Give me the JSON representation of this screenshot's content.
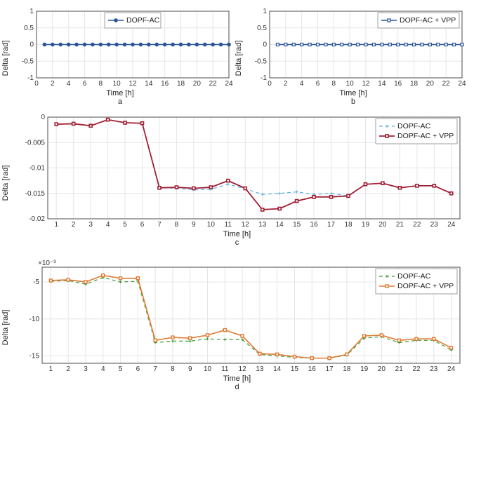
{
  "common": {
    "xlabel": "Time [h]",
    "ylabel": "Delta [rad]",
    "grid_color": "#e6e6e6",
    "axis_color": "#4d4d4d",
    "background_color": "#ffffff",
    "tick_fontsize": 10,
    "label_fontsize": 11
  },
  "panel_a": {
    "sub": "a",
    "type": "line",
    "xlim": [
      0,
      24
    ],
    "xtick_step": 2,
    "ylim": [
      -1,
      1
    ],
    "ytick_step": 0.5,
    "series": [
      {
        "name": "DOPF-AC",
        "color": "#2b5797",
        "marker": "circle",
        "marker_size": 4.5,
        "linewidth": 1.4,
        "dash": "none",
        "x": [
          1,
          2,
          3,
          4,
          5,
          6,
          7,
          8,
          9,
          10,
          11,
          12,
          13,
          14,
          15,
          16,
          17,
          18,
          19,
          20,
          21,
          22,
          23,
          24
        ],
        "y": [
          0,
          0,
          0,
          0,
          0,
          0,
          0,
          0,
          0,
          0,
          0,
          0,
          0,
          0,
          0,
          0,
          0,
          0,
          0,
          0,
          0,
          0,
          0,
          0
        ]
      }
    ],
    "legend": {
      "pos": "top-center",
      "items": [
        "DOPF-AC"
      ]
    }
  },
  "panel_b": {
    "sub": "b",
    "type": "line",
    "xlim": [
      0,
      24
    ],
    "xtick_step": 2,
    "ylim": [
      -1,
      1
    ],
    "ytick_step": 0.5,
    "series": [
      {
        "name": "DOPF-AC + VPP",
        "color": "#2b5797",
        "marker": "square",
        "marker_size": 4,
        "linewidth": 1.4,
        "dash": "none",
        "x": [
          1,
          2,
          3,
          4,
          5,
          6,
          7,
          8,
          9,
          10,
          11,
          12,
          13,
          14,
          15,
          16,
          17,
          18,
          19,
          20,
          21,
          22,
          23,
          24
        ],
        "y": [
          0,
          0,
          0,
          0,
          0,
          0,
          0,
          0,
          0,
          0,
          0,
          0,
          0,
          0,
          0,
          0,
          0,
          0,
          0,
          0,
          0,
          0,
          0,
          0
        ]
      }
    ],
    "legend": {
      "pos": "top-right",
      "items": [
        "DOPF-AC + VPP"
      ]
    }
  },
  "panel_c": {
    "sub": "c",
    "type": "line",
    "xlim": [
      0.5,
      24.5
    ],
    "xtick_step": 1,
    "ylim": [
      -0.02,
      0
    ],
    "ytick_step": 0.005,
    "series": [
      {
        "name": "DOPF-AC",
        "color": "#5ab3e6",
        "marker": "plus",
        "marker_size": 4,
        "linewidth": 1.2,
        "dash": "dash",
        "x": [
          1,
          2,
          3,
          4,
          5,
          6,
          7,
          8,
          9,
          10,
          11,
          12,
          13,
          14,
          15,
          16,
          17,
          18,
          19,
          20,
          21,
          22,
          23,
          24
        ],
        "y": [
          -0.0014,
          -0.0013,
          -0.0017,
          -0.0005,
          -0.0011,
          -0.0012,
          -0.0139,
          -0.014,
          -0.0143,
          -0.0142,
          -0.0132,
          -0.0141,
          -0.0152,
          -0.015,
          -0.0147,
          -0.0152,
          -0.015,
          -0.0155,
          -0.0132,
          -0.013,
          -0.0139,
          -0.0135,
          -0.0135,
          -0.015
        ]
      },
      {
        "name": "DOPF-AC + VPP",
        "color": "#a02035",
        "marker": "square",
        "marker_size": 4,
        "linewidth": 1.8,
        "dash": "none",
        "x": [
          1,
          2,
          3,
          4,
          5,
          6,
          7,
          8,
          9,
          10,
          11,
          12,
          13,
          14,
          15,
          16,
          17,
          18,
          19,
          20,
          21,
          22,
          23,
          24
        ],
        "y": [
          -0.0014,
          -0.0013,
          -0.0017,
          -0.0005,
          -0.0011,
          -0.0012,
          -0.0139,
          -0.0138,
          -0.014,
          -0.0138,
          -0.0125,
          -0.014,
          -0.0182,
          -0.018,
          -0.0165,
          -0.0157,
          -0.0157,
          -0.0155,
          -0.0132,
          -0.013,
          -0.0139,
          -0.0135,
          -0.0135,
          -0.015
        ]
      }
    ],
    "legend": {
      "pos": "top-right",
      "items": [
        "DOPF-AC",
        "DOPF-AC + VPP"
      ]
    }
  },
  "panel_d": {
    "sub": "d",
    "type": "line",
    "xlim": [
      0.5,
      24.5
    ],
    "xtick_step": 1,
    "ylim": [
      -16,
      -3
    ],
    "ytick_step": 5,
    "yticks": [
      -15,
      -10,
      -5
    ],
    "y_exponent": -3,
    "y_exponent_label": "×10⁻³",
    "series": [
      {
        "name": "DOPF-AC",
        "color": "#3d9b35",
        "marker": "plus",
        "marker_size": 4,
        "linewidth": 1.2,
        "dash": "dash",
        "x": [
          1,
          2,
          3,
          4,
          5,
          6,
          7,
          8,
          9,
          10,
          11,
          12,
          13,
          14,
          15,
          16,
          17,
          18,
          19,
          20,
          21,
          22,
          23,
          24
        ],
        "y": [
          -4.9,
          -4.8,
          -5.3,
          -4.4,
          -5.0,
          -4.9,
          -13.2,
          -13.0,
          -13.0,
          -12.7,
          -12.8,
          -12.8,
          -14.8,
          -15.0,
          -15.2,
          -15.3,
          -15.3,
          -14.9,
          -12.6,
          -12.4,
          -13.2,
          -12.9,
          -12.9,
          -14.2
        ]
      },
      {
        "name": "DOPF-AC + VPP",
        "color": "#e07b33",
        "marker": "square",
        "marker_size": 4,
        "linewidth": 1.6,
        "dash": "none",
        "x": [
          1,
          2,
          3,
          4,
          5,
          6,
          7,
          8,
          9,
          10,
          11,
          12,
          13,
          14,
          15,
          16,
          17,
          18,
          19,
          20,
          21,
          22,
          23,
          24
        ],
        "y": [
          -4.8,
          -4.7,
          -5.0,
          -4.1,
          -4.5,
          -4.5,
          -12.9,
          -12.5,
          -12.6,
          -12.2,
          -11.5,
          -12.3,
          -14.7,
          -14.8,
          -15.1,
          -15.3,
          -15.3,
          -14.8,
          -12.3,
          -12.2,
          -12.9,
          -12.7,
          -12.7,
          -13.9
        ]
      }
    ],
    "legend": {
      "pos": "top-right",
      "items": [
        "DOPF-AC",
        "DOPF-AC + VPP"
      ]
    }
  }
}
